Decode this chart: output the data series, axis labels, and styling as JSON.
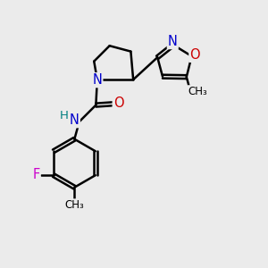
{
  "background_color": "#ebebeb",
  "atom_colors": {
    "C": "#000000",
    "N": "#0000cc",
    "O": "#cc0000",
    "F": "#cc00cc",
    "H": "#008080"
  },
  "bond_color": "#000000",
  "bond_width": 1.8,
  "font_size": 10
}
